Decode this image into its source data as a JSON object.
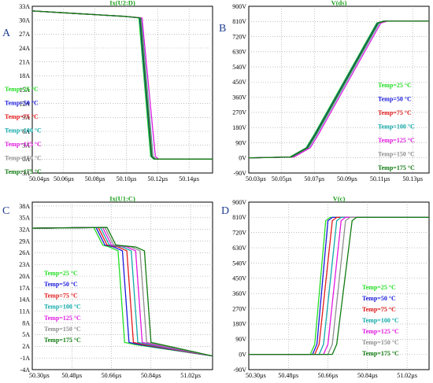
{
  "chart_data": [
    {
      "type": "line",
      "panel_label": "A",
      "title": "Ix(U2:D)",
      "xlim": [
        50.04,
        50.155
      ],
      "ylim": [
        -3,
        33
      ],
      "xticks": [
        50.04,
        50.06,
        50.08,
        50.1,
        50.12,
        50.14
      ],
      "xtick_labels": [
        "50.04µs",
        "50.06µs",
        "50.08µs",
        "50.10µs",
        "50.12µs",
        "50.14µs"
      ],
      "yticks": [
        -3,
        0,
        3,
        6,
        9,
        12,
        15,
        18,
        21,
        24,
        27,
        30,
        33
      ],
      "ytick_labels": [
        "-3A",
        "0A",
        "3A",
        "6A",
        "9A",
        "12A",
        "15A",
        "18A",
        "21A",
        "24A",
        "27A",
        "30A",
        "33A"
      ],
      "grid": "dotted",
      "legend_position": "left",
      "series": [
        {
          "name": "Temp=25 °C",
          "color": "#22dd22",
          "x": [
            50.04,
            50.07,
            50.1,
            50.108,
            50.1155,
            50.1175,
            50.155
          ],
          "y": [
            32,
            31.4,
            30.8,
            30.5,
            0.6,
            0,
            0
          ]
        },
        {
          "name": "Temp=50 °C",
          "color": "#1a1adc",
          "x": [
            50.04,
            50.07,
            50.1,
            50.1085,
            50.116,
            50.118,
            50.155
          ],
          "y": [
            32,
            31.4,
            30.8,
            30.5,
            0.6,
            0,
            0
          ]
        },
        {
          "name": "Temp=75 °C",
          "color": "#e01a1a",
          "x": [
            50.04,
            50.07,
            50.1,
            50.109,
            50.1165,
            50.1185,
            50.155
          ],
          "y": [
            32,
            31.4,
            30.8,
            30.5,
            0.6,
            0,
            0
          ]
        },
        {
          "name": "Temp=100 °C",
          "color": "#10a8a8",
          "x": [
            50.04,
            50.07,
            50.1,
            50.1095,
            50.117,
            50.119,
            50.155
          ],
          "y": [
            32,
            31.4,
            30.8,
            30.5,
            0.6,
            0,
            0
          ]
        },
        {
          "name": "Temp=125 °C",
          "color": "#e01ae0",
          "x": [
            50.04,
            50.07,
            50.1,
            50.11,
            50.1185,
            50.1205,
            50.155
          ],
          "y": [
            32,
            31.4,
            30.8,
            30.5,
            0.6,
            0,
            0
          ]
        },
        {
          "name": "Temp=150 °C",
          "color": "#8e8e8e",
          "x": [
            50.04,
            50.07,
            50.1,
            50.1092,
            50.1168,
            50.1188,
            50.155
          ],
          "y": [
            32,
            31.4,
            30.8,
            30.5,
            0.6,
            0,
            0
          ]
        },
        {
          "name": "Temp=175 °C",
          "color": "#107a10",
          "x": [
            50.04,
            50.07,
            50.1,
            50.1088,
            50.1162,
            50.1182,
            50.155
          ],
          "y": [
            32,
            31.4,
            30.8,
            30.5,
            0.6,
            0,
            0
          ]
        }
      ]
    },
    {
      "type": "line",
      "panel_label": "B",
      "title": "V(ds)",
      "xlim": [
        50.03,
        50.14
      ],
      "ylim": [
        -90,
        900
      ],
      "xticks": [
        50.03,
        50.05,
        50.07,
        50.09,
        50.11,
        50.13
      ],
      "xtick_labels": [
        "50.03µs",
        "50.05µs",
        "50.07µs",
        "50.09µs",
        "50.11µs",
        "50.13µs"
      ],
      "yticks": [
        -90,
        0,
        90,
        180,
        270,
        360,
        450,
        540,
        630,
        720,
        810,
        900
      ],
      "ytick_labels": [
        "-90V",
        "0V",
        "90V",
        "180V",
        "270V",
        "360V",
        "450V",
        "540V",
        "630V",
        "720V",
        "810V",
        "900V"
      ],
      "grid": "dotted",
      "legend_position": "right",
      "series": [
        {
          "name": "Temp=25 °C",
          "color": "#22dd22",
          "x": [
            50.03,
            50.055,
            50.065,
            50.07,
            50.108,
            50.112,
            50.14
          ],
          "y": [
            0,
            5,
            60,
            140,
            800,
            812,
            812
          ]
        },
        {
          "name": "Temp=50 °C",
          "color": "#1a1adc",
          "x": [
            50.03,
            50.0555,
            50.0655,
            50.0705,
            50.1085,
            50.1125,
            50.14
          ],
          "y": [
            0,
            5,
            60,
            140,
            800,
            812,
            812
          ]
        },
        {
          "name": "Temp=75 °C",
          "color": "#e01a1a",
          "x": [
            50.03,
            50.056,
            50.066,
            50.071,
            50.109,
            50.113,
            50.14
          ],
          "y": [
            0,
            5,
            60,
            140,
            800,
            812,
            812
          ]
        },
        {
          "name": "Temp=100 °C",
          "color": "#10a8a8",
          "x": [
            50.03,
            50.0565,
            50.0665,
            50.0715,
            50.1095,
            50.1135,
            50.14
          ],
          "y": [
            0,
            5,
            60,
            140,
            800,
            812,
            812
          ]
        },
        {
          "name": "Temp=125 °C",
          "color": "#e01ae0",
          "x": [
            50.03,
            50.0575,
            50.0675,
            50.0725,
            50.1105,
            50.1145,
            50.14
          ],
          "y": [
            0,
            5,
            60,
            140,
            800,
            812,
            812
          ]
        },
        {
          "name": "Temp=150 °C",
          "color": "#8e8e8e",
          "x": [
            50.03,
            50.0562,
            50.0662,
            50.0712,
            50.1092,
            50.1132,
            50.14
          ],
          "y": [
            0,
            5,
            60,
            140,
            800,
            812,
            812
          ]
        },
        {
          "name": "Temp=175 °C",
          "color": "#107a10",
          "x": [
            50.03,
            50.0558,
            50.0658,
            50.0708,
            50.1088,
            50.1128,
            50.14
          ],
          "y": [
            0,
            5,
            60,
            140,
            800,
            812,
            812
          ]
        }
      ]
    },
    {
      "type": "line",
      "panel_label": "C",
      "title": "Ix(U1:C)",
      "xlim": [
        50.3,
        51.12
      ],
      "ylim": [
        -4,
        39
      ],
      "xticks": [
        50.3,
        50.48,
        50.66,
        50.84,
        51.02
      ],
      "xtick_labels": [
        "50.30µs",
        "50.48µs",
        "50.66µs",
        "50.84µs",
        "51.02µs"
      ],
      "yticks": [
        -4,
        -1,
        2,
        5,
        8,
        11,
        14,
        17,
        20,
        23,
        26,
        29,
        32,
        35,
        38
      ],
      "ytick_labels": [
        "-4A",
        "-1A",
        "2A",
        "5A",
        "8A",
        "11A",
        "14A",
        "17A",
        "20A",
        "23A",
        "26A",
        "29A",
        "32A",
        "35A",
        "38A"
      ],
      "grid": "dotted",
      "legend_position": "left",
      "series": [
        {
          "name": "Temp=25 °C",
          "color": "#22dd22",
          "x": [
            50.3,
            50.58,
            50.62,
            50.65,
            50.69,
            50.72,
            50.76,
            51.12
          ],
          "y": [
            32.3,
            32.5,
            28,
            27.5,
            26.5,
            3,
            2.5,
            -0.5
          ]
        },
        {
          "name": "Temp=50 °C",
          "color": "#1a1adc",
          "x": [
            50.3,
            50.59,
            50.63,
            50.67,
            50.71,
            50.74,
            50.78,
            51.12
          ],
          "y": [
            32.3,
            32.5,
            28,
            27.5,
            26.5,
            3,
            2.5,
            -0.5
          ]
        },
        {
          "name": "Temp=75 °C",
          "color": "#e01a1a",
          "x": [
            50.3,
            50.6,
            50.64,
            50.69,
            50.73,
            50.76,
            50.8,
            51.12
          ],
          "y": [
            32.3,
            32.5,
            28,
            27.5,
            26.5,
            3,
            2.5,
            -0.5
          ]
        },
        {
          "name": "Temp=100 °C",
          "color": "#10a8a8",
          "x": [
            50.3,
            50.61,
            50.65,
            50.71,
            50.75,
            50.78,
            50.82,
            51.12
          ],
          "y": [
            32.3,
            32.5,
            28,
            27.5,
            26.5,
            3,
            2.5,
            -0.5
          ]
        },
        {
          "name": "Temp=125 °C",
          "color": "#e01ae0",
          "x": [
            50.3,
            50.62,
            50.66,
            50.73,
            50.77,
            50.8,
            50.84,
            51.12
          ],
          "y": [
            32.3,
            32.5,
            28,
            27.5,
            26.5,
            3,
            2.5,
            -0.5
          ]
        },
        {
          "name": "Temp=150 °C",
          "color": "#8e8e8e",
          "x": [
            50.3,
            50.63,
            50.67,
            50.75,
            50.79,
            50.82,
            50.86,
            51.12
          ],
          "y": [
            32.3,
            32.5,
            28,
            27.5,
            26.5,
            3,
            2.5,
            -0.5
          ]
        },
        {
          "name": "Temp=175 °C",
          "color": "#107a10",
          "x": [
            50.3,
            50.64,
            50.68,
            50.77,
            50.81,
            50.84,
            50.88,
            51.12
          ],
          "y": [
            32.3,
            32.5,
            28,
            27.5,
            26.5,
            3,
            2.5,
            -0.5
          ]
        }
      ]
    },
    {
      "type": "line",
      "panel_label": "D",
      "title": "V(c)",
      "xlim": [
        50.3,
        51.12
      ],
      "ylim": [
        -90,
        900
      ],
      "xticks": [
        50.3,
        50.48,
        50.66,
        50.84,
        51.02
      ],
      "xtick_labels": [
        "50.30µs",
        "50.48µs",
        "50.66µs",
        "50.84µs",
        "51.02µs"
      ],
      "yticks": [
        -90,
        0,
        90,
        180,
        270,
        360,
        450,
        540,
        630,
        720,
        810,
        900
      ],
      "ytick_labels": [
        "-90V",
        "0V",
        "90V",
        "180V",
        "270V",
        "360V",
        "450V",
        "540V",
        "630V",
        "720V",
        "810V",
        "900V"
      ],
      "grid": "dotted",
      "legend_position": "right",
      "series": [
        {
          "name": "Temp=25 °C",
          "color": "#22dd22",
          "x": [
            50.3,
            50.58,
            50.6,
            50.65,
            50.67,
            51.12
          ],
          "y": [
            0,
            0,
            60,
            790,
            810,
            810
          ]
        },
        {
          "name": "Temp=50 °C",
          "color": "#1a1adc",
          "x": [
            50.3,
            50.59,
            50.61,
            50.66,
            50.68,
            51.12
          ],
          "y": [
            0,
            0,
            60,
            790,
            810,
            810
          ]
        },
        {
          "name": "Temp=75 °C",
          "color": "#e01a1a",
          "x": [
            50.3,
            50.6,
            50.62,
            50.68,
            50.7,
            51.12
          ],
          "y": [
            0,
            0,
            60,
            790,
            810,
            810
          ]
        },
        {
          "name": "Temp=100 °C",
          "color": "#10a8a8",
          "x": [
            50.3,
            50.62,
            50.64,
            50.7,
            50.72,
            51.12
          ],
          "y": [
            0,
            0,
            60,
            790,
            810,
            810
          ]
        },
        {
          "name": "Temp=125 °C",
          "color": "#e01ae0",
          "x": [
            50.3,
            50.64,
            50.66,
            50.72,
            50.74,
            51.12
          ],
          "y": [
            0,
            0,
            60,
            790,
            810,
            810
          ]
        },
        {
          "name": "Temp=150 °C",
          "color": "#8e8e8e",
          "x": [
            50.3,
            50.66,
            50.68,
            50.74,
            50.76,
            51.12
          ],
          "y": [
            0,
            0,
            60,
            790,
            810,
            810
          ]
        },
        {
          "name": "Temp=175 °C",
          "color": "#107a10",
          "x": [
            50.3,
            50.68,
            50.7,
            50.77,
            50.79,
            51.12
          ],
          "y": [
            0,
            0,
            60,
            790,
            810,
            810
          ]
        }
      ]
    }
  ]
}
